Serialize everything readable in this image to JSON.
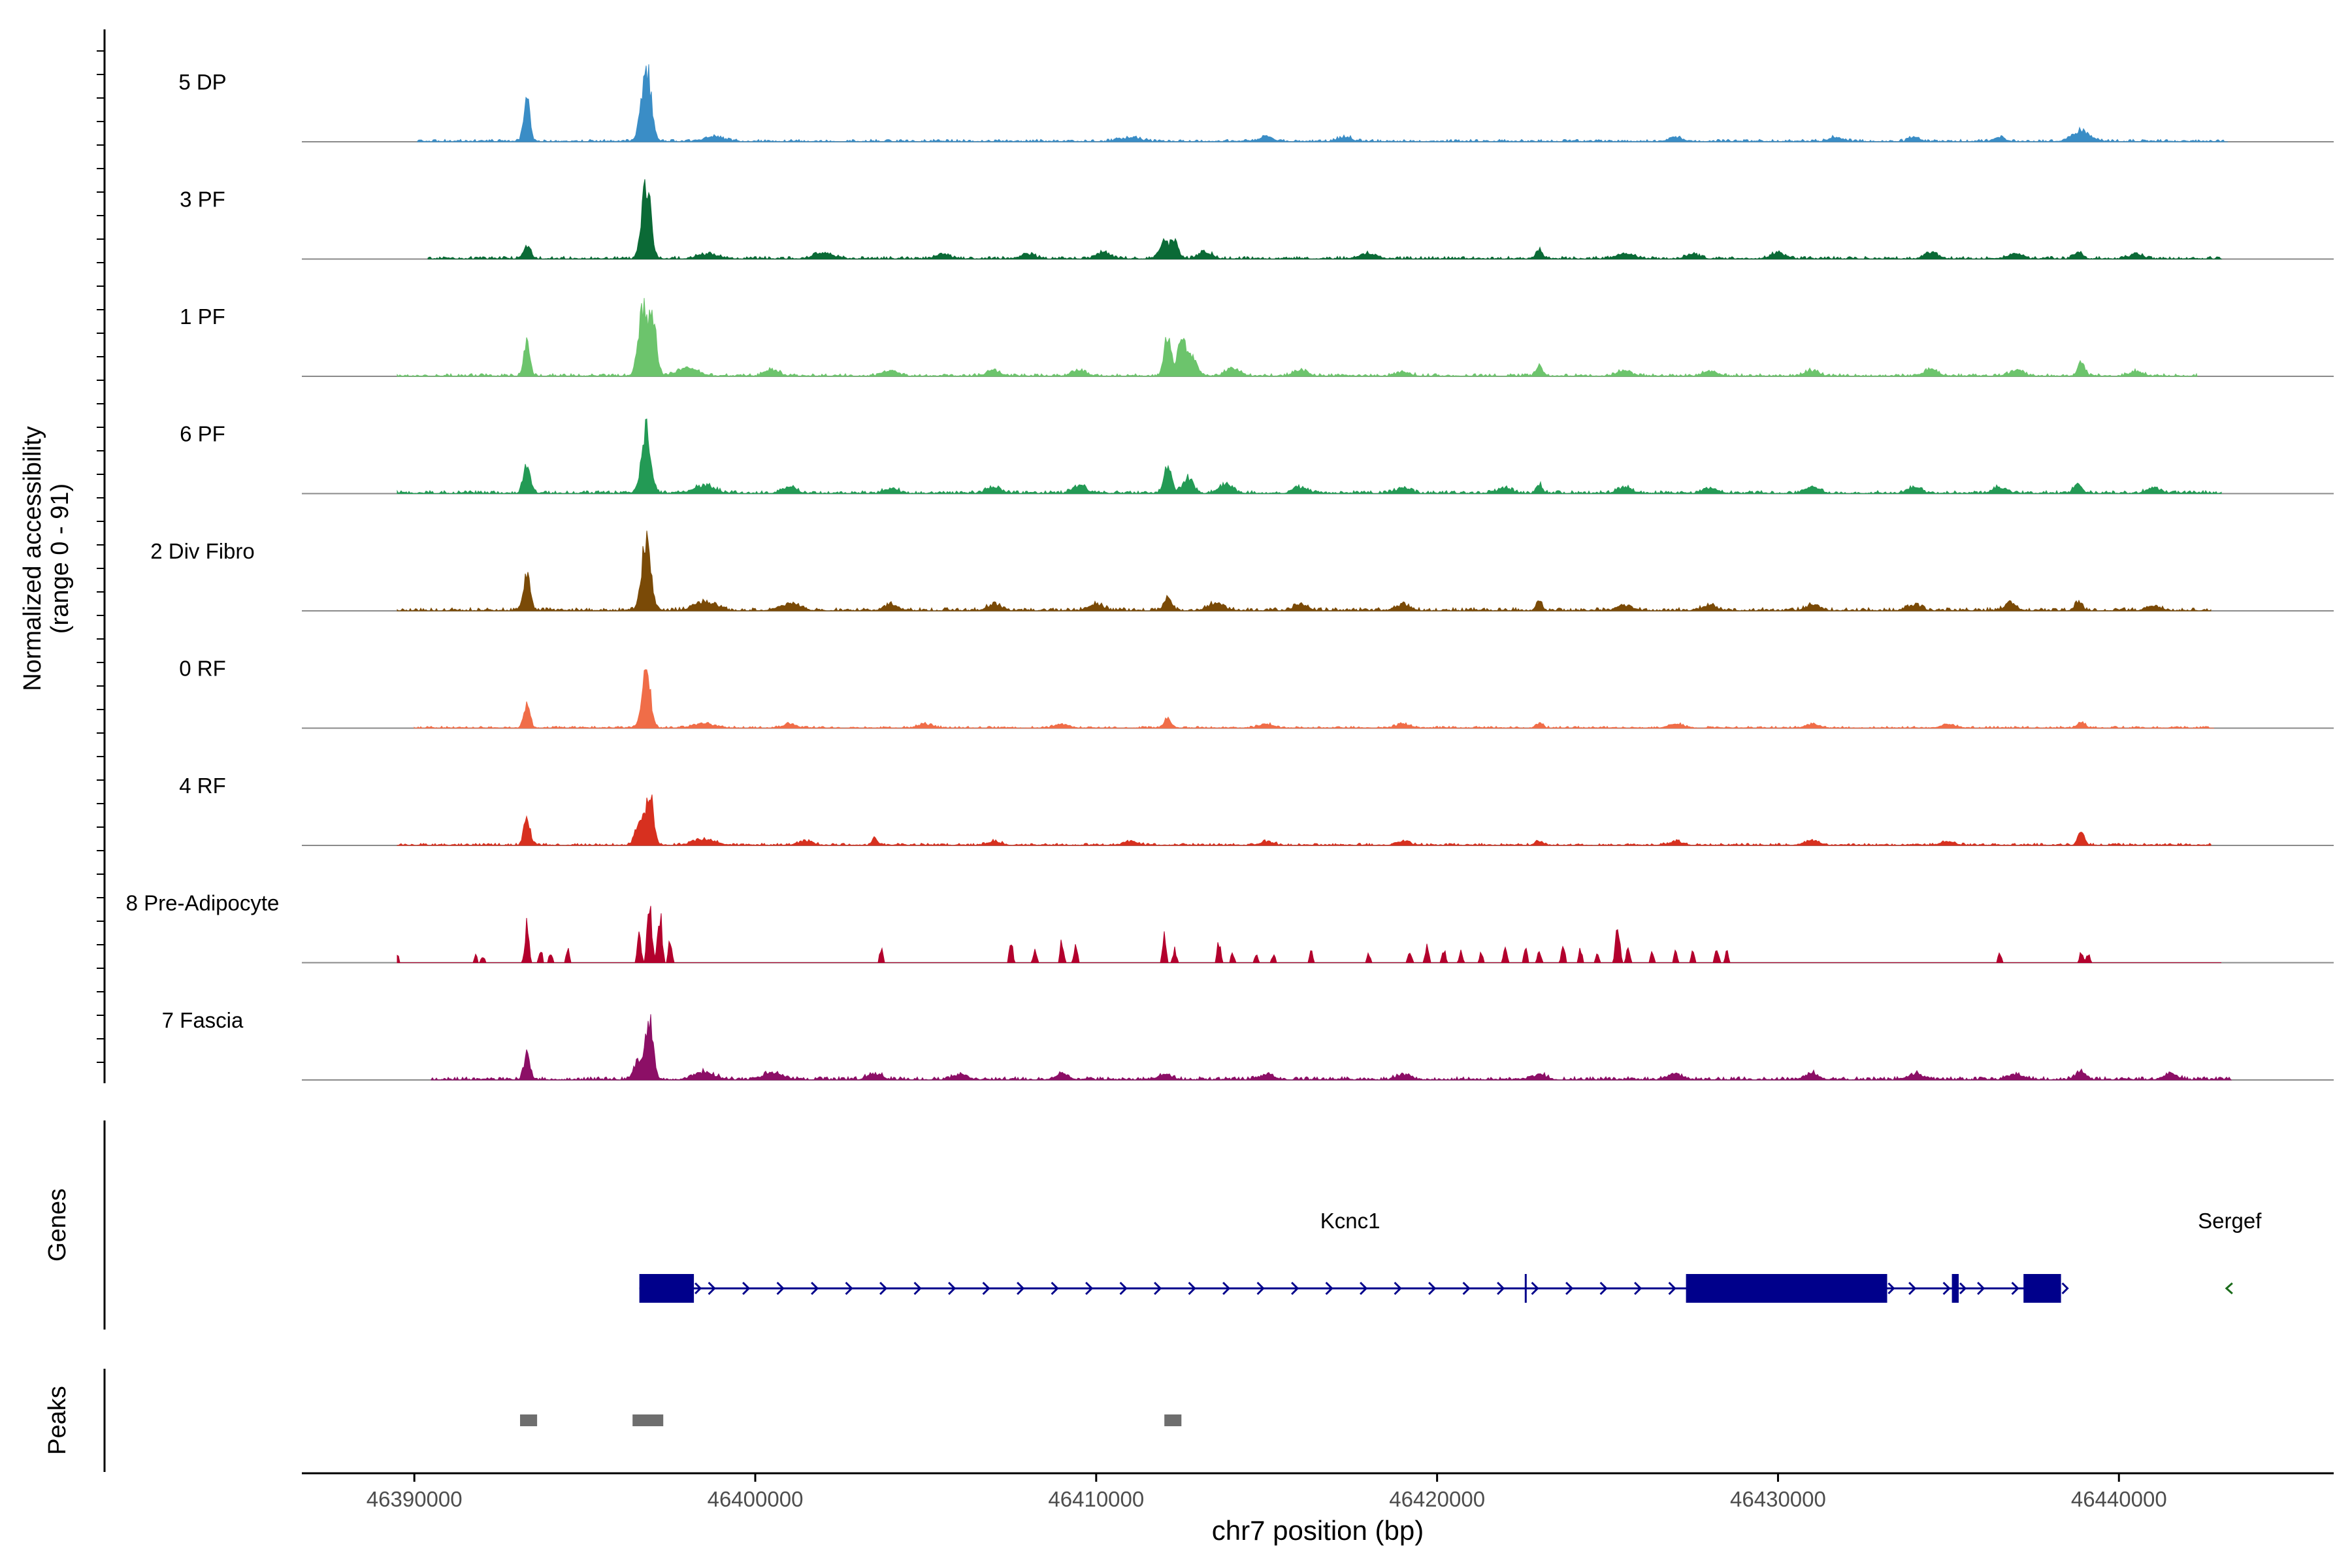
{
  "chart_data": {
    "type": "area",
    "description_axis": {
      "ylabel_line1": "Normalized accessibility",
      "ylabel_line2": "(range 0 - 91)",
      "yrange": [
        0,
        91
      ],
      "xlabel": "chr7 position (bp)",
      "xlim": [
        46386700,
        46446300
      ],
      "xticks": [
        46390000,
        46400000,
        46410000,
        46420000,
        46430000,
        46440000
      ],
      "xtick_labels": [
        "46390000",
        "46400000",
        "46410000",
        "46420000",
        "46430000",
        "46440000"
      ]
    },
    "tracks": [
      {
        "name": "5 DP",
        "color": "#3a8dc6",
        "start": 46390100,
        "end": 46443200,
        "noise": 0.045,
        "seed": 11,
        "peaks": [
          [
            46393300,
            0.55,
            90
          ],
          [
            46396800,
            1.0,
            140
          ],
          [
            46398800,
            0.06,
            300
          ],
          [
            46411000,
            0.05,
            300
          ],
          [
            46415000,
            0.06,
            200
          ],
          [
            46417300,
            0.06,
            200
          ],
          [
            46427000,
            0.06,
            200
          ],
          [
            46431700,
            0.06,
            200
          ],
          [
            46434000,
            0.06,
            150
          ],
          [
            46436500,
            0.06,
            150
          ],
          [
            46438900,
            0.14,
            250
          ]
        ]
      },
      {
        "name": "3 PF",
        "color": "#0b6a36",
        "start": 46390400,
        "end": 46443000,
        "noise": 0.05,
        "seed": 23,
        "peaks": [
          [
            46393300,
            0.18,
            110
          ],
          [
            46396800,
            1.0,
            130
          ],
          [
            46398600,
            0.06,
            300
          ],
          [
            46402000,
            0.07,
            300
          ],
          [
            46405500,
            0.06,
            200
          ],
          [
            46408000,
            0.07,
            200
          ],
          [
            46410200,
            0.08,
            200
          ],
          [
            46412000,
            0.2,
            150
          ],
          [
            46412300,
            0.22,
            110
          ],
          [
            46413200,
            0.09,
            200
          ],
          [
            46418000,
            0.06,
            250
          ],
          [
            46423000,
            0.13,
            90
          ],
          [
            46425500,
            0.07,
            250
          ],
          [
            46427500,
            0.06,
            200
          ],
          [
            46430000,
            0.08,
            200
          ],
          [
            46434500,
            0.07,
            200
          ],
          [
            46437000,
            0.06,
            200
          ],
          [
            46438800,
            0.1,
            120
          ],
          [
            46440500,
            0.06,
            200
          ]
        ]
      },
      {
        "name": "1 PF",
        "color": "#6cc46c",
        "start": 46389500,
        "end": 46442300,
        "noise": 0.05,
        "seed": 37,
        "peaks": [
          [
            46393300,
            0.45,
            90
          ],
          [
            46396700,
            0.9,
            130
          ],
          [
            46397000,
            0.7,
            110
          ],
          [
            46398000,
            0.1,
            300
          ],
          [
            46400500,
            0.08,
            200
          ],
          [
            46404000,
            0.07,
            200
          ],
          [
            46407000,
            0.07,
            200
          ],
          [
            46409500,
            0.07,
            200
          ],
          [
            46412100,
            0.55,
            100
          ],
          [
            46412500,
            0.5,
            100
          ],
          [
            46412800,
            0.25,
            150
          ],
          [
            46414000,
            0.1,
            200
          ],
          [
            46416000,
            0.08,
            200
          ],
          [
            46419000,
            0.06,
            200
          ],
          [
            46423000,
            0.15,
            90
          ],
          [
            46425500,
            0.07,
            200
          ],
          [
            46428000,
            0.07,
            200
          ],
          [
            46431000,
            0.07,
            200
          ],
          [
            46434500,
            0.08,
            200
          ],
          [
            46437000,
            0.07,
            200
          ],
          [
            46438900,
            0.2,
            100
          ],
          [
            46440500,
            0.06,
            200
          ]
        ]
      },
      {
        "name": "6 PF",
        "color": "#239a55",
        "start": 46389500,
        "end": 46443000,
        "noise": 0.055,
        "seed": 51,
        "peaks": [
          [
            46393300,
            0.38,
            100
          ],
          [
            46396800,
            0.85,
            130
          ],
          [
            46398500,
            0.1,
            300
          ],
          [
            46401000,
            0.08,
            200
          ],
          [
            46404000,
            0.07,
            200
          ],
          [
            46407000,
            0.08,
            200
          ],
          [
            46409500,
            0.1,
            200
          ],
          [
            46412100,
            0.38,
            110
          ],
          [
            46412700,
            0.2,
            150
          ],
          [
            46413800,
            0.12,
            200
          ],
          [
            46416000,
            0.08,
            200
          ],
          [
            46419000,
            0.07,
            200
          ],
          [
            46422000,
            0.07,
            200
          ],
          [
            46423000,
            0.12,
            90
          ],
          [
            46425500,
            0.08,
            200
          ],
          [
            46428000,
            0.07,
            200
          ],
          [
            46431000,
            0.08,
            200
          ],
          [
            46434000,
            0.08,
            200
          ],
          [
            46436500,
            0.08,
            200
          ],
          [
            46438800,
            0.12,
            120
          ],
          [
            46441000,
            0.07,
            200
          ]
        ]
      },
      {
        "name": "2 Div Fibro",
        "color": "#7a4a07",
        "start": 46389500,
        "end": 46442700,
        "noise": 0.06,
        "seed": 67,
        "peaks": [
          [
            46393300,
            0.45,
            100
          ],
          [
            46396800,
            0.95,
            130
          ],
          [
            46398500,
            0.12,
            300
          ],
          [
            46401000,
            0.09,
            300
          ],
          [
            46404000,
            0.08,
            200
          ],
          [
            46407000,
            0.08,
            200
          ],
          [
            46410000,
            0.08,
            200
          ],
          [
            46412100,
            0.18,
            110
          ],
          [
            46413500,
            0.1,
            200
          ],
          [
            46416000,
            0.08,
            200
          ],
          [
            46419000,
            0.08,
            200
          ],
          [
            46423000,
            0.12,
            90
          ],
          [
            46425500,
            0.07,
            200
          ],
          [
            46428000,
            0.07,
            200
          ],
          [
            46431000,
            0.07,
            200
          ],
          [
            46434000,
            0.07,
            200
          ],
          [
            46436800,
            0.1,
            150
          ],
          [
            46438800,
            0.12,
            100
          ],
          [
            46441000,
            0.06,
            200
          ]
        ]
      },
      {
        "name": "0 RF",
        "color": "#f06d48",
        "start": 46390000,
        "end": 46442800,
        "noise": 0.035,
        "seed": 79,
        "peaks": [
          [
            46393300,
            0.3,
            90
          ],
          [
            46396800,
            0.8,
            120
          ],
          [
            46398500,
            0.06,
            300
          ],
          [
            46401000,
            0.05,
            200
          ],
          [
            46405000,
            0.05,
            200
          ],
          [
            46409000,
            0.05,
            200
          ],
          [
            46412100,
            0.12,
            100
          ],
          [
            46415000,
            0.05,
            200
          ],
          [
            46419000,
            0.05,
            200
          ],
          [
            46423000,
            0.06,
            100
          ],
          [
            46427000,
            0.05,
            200
          ],
          [
            46431000,
            0.05,
            200
          ],
          [
            46435000,
            0.05,
            200
          ],
          [
            46438900,
            0.09,
            100
          ]
        ]
      },
      {
        "name": "4 RF",
        "color": "#d7301f",
        "start": 46389500,
        "end": 46442700,
        "noise": 0.04,
        "seed": 97,
        "peaks": [
          [
            46393300,
            0.38,
            90
          ],
          [
            46396600,
            0.3,
            120
          ],
          [
            46396900,
            0.7,
            110
          ],
          [
            46398500,
            0.08,
            300
          ],
          [
            46401500,
            0.06,
            200
          ],
          [
            46403500,
            0.1,
            80
          ],
          [
            46407000,
            0.05,
            200
          ],
          [
            46411000,
            0.05,
            200
          ],
          [
            46415000,
            0.05,
            200
          ],
          [
            46419000,
            0.05,
            200
          ],
          [
            46423000,
            0.06,
            100
          ],
          [
            46427000,
            0.05,
            200
          ],
          [
            46431000,
            0.06,
            200
          ],
          [
            46435000,
            0.05,
            200
          ],
          [
            46438900,
            0.18,
            90
          ]
        ]
      },
      {
        "name": "8 Pre-Adipocyte",
        "color": "#b3002d",
        "start": 46389500,
        "end": 46443000,
        "noise": 0,
        "seed": 113,
        "sparse": true,
        "peaks": [
          [
            46389500,
            0.12,
            50
          ],
          [
            46391800,
            0.1,
            50
          ],
          [
            46392000,
            0.1,
            50
          ],
          [
            46393300,
            0.5,
            60
          ],
          [
            46393700,
            0.2,
            50
          ],
          [
            46394000,
            0.15,
            50
          ],
          [
            46394500,
            0.2,
            50
          ],
          [
            46396600,
            0.4,
            50
          ],
          [
            46396900,
            0.95,
            60
          ],
          [
            46397200,
            0.7,
            60
          ],
          [
            46397500,
            0.3,
            50
          ],
          [
            46403700,
            0.22,
            50
          ],
          [
            46407500,
            0.3,
            50
          ],
          [
            46408200,
            0.18,
            50
          ],
          [
            46409000,
            0.32,
            50
          ],
          [
            46409400,
            0.22,
            50
          ],
          [
            46412000,
            0.35,
            50
          ],
          [
            46412300,
            0.18,
            50
          ],
          [
            46413600,
            0.28,
            50
          ],
          [
            46414000,
            0.15,
            50
          ],
          [
            46414700,
            0.12,
            50
          ],
          [
            46415200,
            0.12,
            50
          ],
          [
            46416300,
            0.18,
            50
          ],
          [
            46418000,
            0.12,
            50
          ],
          [
            46419200,
            0.15,
            50
          ],
          [
            46419700,
            0.25,
            50
          ],
          [
            46420200,
            0.18,
            50
          ],
          [
            46420700,
            0.15,
            50
          ],
          [
            46421300,
            0.15,
            50
          ],
          [
            46422000,
            0.2,
            50
          ],
          [
            46422600,
            0.2,
            50
          ],
          [
            46423000,
            0.15,
            50
          ],
          [
            46423700,
            0.22,
            50
          ],
          [
            46424200,
            0.2,
            50
          ],
          [
            46424700,
            0.15,
            50
          ],
          [
            46425300,
            0.55,
            60
          ],
          [
            46425600,
            0.2,
            50
          ],
          [
            46426300,
            0.15,
            50
          ],
          [
            46427000,
            0.15,
            50
          ],
          [
            46427500,
            0.15,
            50
          ],
          [
            46428200,
            0.22,
            50
          ],
          [
            46428500,
            0.15,
            50
          ],
          [
            46436500,
            0.12,
            50
          ],
          [
            46438900,
            0.15,
            50
          ],
          [
            46439100,
            0.12,
            50
          ]
        ]
      },
      {
        "name": "7 Fascia",
        "color": "#8c0f66",
        "start": 46390500,
        "end": 46443300,
        "noise": 0.06,
        "seed": 131,
        "peaks": [
          [
            46393300,
            0.32,
            90
          ],
          [
            46396600,
            0.25,
            150
          ],
          [
            46396900,
            0.75,
            110
          ],
          [
            46398500,
            0.1,
            300
          ],
          [
            46400500,
            0.08,
            300
          ],
          [
            46403500,
            0.08,
            200
          ],
          [
            46406000,
            0.07,
            200
          ],
          [
            46409000,
            0.07,
            200
          ],
          [
            46412000,
            0.07,
            200
          ],
          [
            46415000,
            0.07,
            200
          ],
          [
            46419000,
            0.07,
            200
          ],
          [
            46423000,
            0.07,
            200
          ],
          [
            46427000,
            0.07,
            200
          ],
          [
            46431000,
            0.08,
            200
          ],
          [
            46434000,
            0.08,
            200
          ],
          [
            46437000,
            0.07,
            200
          ],
          [
            46438900,
            0.1,
            150
          ],
          [
            46441500,
            0.07,
            200
          ]
        ]
      }
    ],
    "genes_label": "Genes",
    "genes": [
      {
        "name": "Kcnc1",
        "strand": "+",
        "color": "#00008b",
        "start": 46396600,
        "end": 46438300,
        "exons": [
          [
            46396600,
            46398200
          ],
          [
            46427300,
            46433200
          ],
          [
            46435100,
            46435300
          ],
          [
            46437200,
            46438300
          ]
        ],
        "marks": [
          46422600
        ]
      },
      {
        "name": "Sergef",
        "strand": "-",
        "color": "#1a6b1a",
        "start": 46443000,
        "end": 46443500,
        "exons": [],
        "marks": []
      }
    ],
    "peaks_label": "Peaks",
    "peaks": [
      [
        46393100,
        46393600
      ],
      [
        46396400,
        46397300
      ],
      [
        46412000,
        46412500
      ]
    ],
    "peaks_color": "#6e6e6e"
  }
}
